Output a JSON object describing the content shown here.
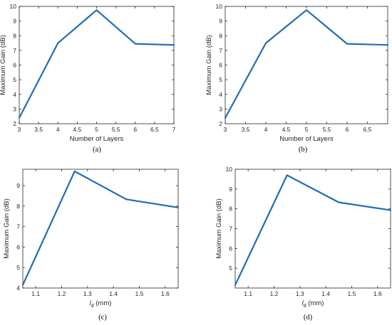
{
  "colors": {
    "series": "#1f6db5"
  },
  "chart_data": [
    {
      "type": "line",
      "caption": "(a)",
      "xlabel": "Number of Layers",
      "ylabel": "Maximum Gain (dB)",
      "xlim": [
        3,
        7
      ],
      "ylim": [
        2,
        10
      ],
      "xticks": [
        3,
        3.5,
        4,
        4.5,
        5,
        5.5,
        6,
        6.5,
        7
      ],
      "xtick_labels": [
        "3",
        "3.5",
        "4",
        "4.5",
        "5",
        "5.5",
        "6",
        "6.5",
        "7"
      ],
      "yticks": [
        2,
        3,
        4,
        5,
        6,
        7,
        8,
        9,
        10
      ],
      "ytick_labels": [
        "2",
        "3",
        "4",
        "5",
        "6",
        "7",
        "8",
        "9",
        "10"
      ],
      "x": [
        3,
        4,
        5,
        6,
        7
      ],
      "y": [
        2.4,
        7.5,
        9.75,
        7.45,
        7.37
      ],
      "grid": false
    },
    {
      "type": "line",
      "caption": "(b)",
      "xlabel": "Number of Layers",
      "ylabel": "Maximum Gain (dB)",
      "xlim": [
        3,
        7
      ],
      "ylim": [
        2,
        10
      ],
      "xticks": [
        3,
        3.5,
        4,
        4.5,
        5,
        5.5,
        6,
        6.5
      ],
      "xtick_labels": [
        "3",
        "3.5",
        "4",
        "4.5",
        "5",
        "5.5",
        "6",
        "6.5"
      ],
      "yticks": [
        2,
        3,
        4,
        5,
        6,
        7,
        8,
        9,
        10
      ],
      "ytick_labels": [
        "2",
        "3",
        "4",
        "5",
        "6",
        "7",
        "8",
        "9",
        "10"
      ],
      "x": [
        3,
        4,
        5,
        6,
        7
      ],
      "y": [
        2.4,
        7.5,
        9.75,
        7.45,
        7.37
      ],
      "grid": false
    },
    {
      "type": "line",
      "caption": "(c)",
      "xlabel_main": "l",
      "xlabel_sub": "d",
      "xlabel_unit": " (mm)",
      "ylabel": "Maximum Gain (dB)",
      "xlim": [
        1.05,
        1.65
      ],
      "ylim": [
        4,
        9.8
      ],
      "xticks": [
        1.1,
        1.2,
        1.3,
        1.4,
        1.5,
        1.6
      ],
      "xtick_labels": [
        "1.1",
        "1.2",
        "1.3",
        "1.4",
        "1.5",
        "1.6"
      ],
      "yticks": [
        4,
        5,
        6,
        7,
        8,
        9
      ],
      "ytick_labels": [
        "4",
        "5",
        "6",
        "7",
        "8",
        "9"
      ],
      "x": [
        1.05,
        1.25,
        1.45,
        1.65
      ],
      "y": [
        4.15,
        9.7,
        8.33,
        7.93
      ],
      "grid": false
    },
    {
      "type": "line",
      "caption": "(d)",
      "xlabel_main": "l",
      "xlabel_sub": "d",
      "xlabel_unit": " (mm)",
      "ylabel": "Maximum Gain (dB)",
      "xlim": [
        1.05,
        1.65
      ],
      "ylim": [
        4,
        10
      ],
      "xticks": [
        1.1,
        1.2,
        1.3,
        1.4,
        1.5,
        1.6
      ],
      "xtick_labels": [
        "1.1",
        "1.2",
        "1.3",
        "1.4",
        "1.5",
        "1.6"
      ],
      "yticks": [
        5,
        6,
        7,
        8,
        9,
        10
      ],
      "ytick_labels": [
        "5",
        "6",
        "7",
        "8",
        "9",
        "10"
      ],
      "x": [
        1.05,
        1.25,
        1.45,
        1.65
      ],
      "y": [
        4.15,
        9.7,
        8.33,
        7.93
      ],
      "grid": false
    }
  ]
}
